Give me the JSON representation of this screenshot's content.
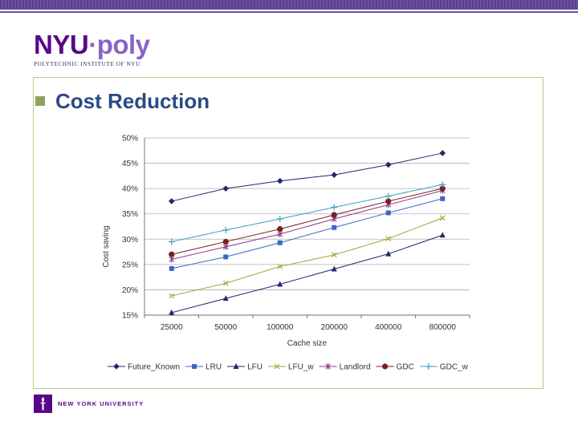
{
  "header": {
    "logo_nyu": "NYU",
    "logo_dot": "·",
    "logo_poly": "poly",
    "logo_subtitle": "POLYTECHNIC INSTITUTE OF NYU"
  },
  "slide": {
    "title": "Cost Reduction"
  },
  "footer": {
    "university": "NEW YORK UNIVERSITY"
  },
  "chart_data": {
    "type": "line",
    "title": "",
    "xlabel": "Cache size",
    "ylabel": "Cost saving",
    "categories": [
      "25000",
      "50000",
      "100000",
      "200000",
      "400000",
      "800000"
    ],
    "y_ticks": [
      "50%",
      "45%",
      "40%",
      "35%",
      "30%",
      "25%",
      "20%",
      "15%"
    ],
    "ylim": [
      15,
      50
    ],
    "y_unit": "%",
    "grid": "horizontal",
    "legend_position": "bottom",
    "series": [
      {
        "name": "Future_Known",
        "color": "#1f2a6e",
        "marker": "diamond",
        "values": [
          37.5,
          40,
          41.5,
          42.7,
          44.7,
          47
        ]
      },
      {
        "name": "LRU",
        "color": "#3a66c4",
        "marker": "square",
        "values": [
          24.2,
          26.5,
          29.3,
          32.3,
          35.2,
          38
        ]
      },
      {
        "name": "LFU",
        "color": "#1f2a6e",
        "marker": "triangle",
        "values": [
          15.5,
          18.3,
          21.1,
          24.1,
          27.1,
          30.8
        ]
      },
      {
        "name": "LFU_w",
        "color": "#a9a33b",
        "marker": "x",
        "values": [
          18.8,
          21.3,
          24.6,
          26.9,
          30.1,
          34.2
        ]
      },
      {
        "name": "Landlord",
        "color": "#8a3a8a",
        "marker": "star",
        "values": [
          26,
          28.5,
          31,
          34,
          36.8,
          39.6
        ]
      },
      {
        "name": "GDC",
        "color": "#7a1f1f",
        "marker": "circle",
        "values": [
          27,
          29.5,
          32,
          34.8,
          37.5,
          40
        ]
      },
      {
        "name": "GDC_w",
        "color": "#3aa0c4",
        "marker": "plus",
        "values": [
          29.5,
          31.8,
          34,
          36.3,
          38.5,
          40.8
        ]
      }
    ]
  }
}
